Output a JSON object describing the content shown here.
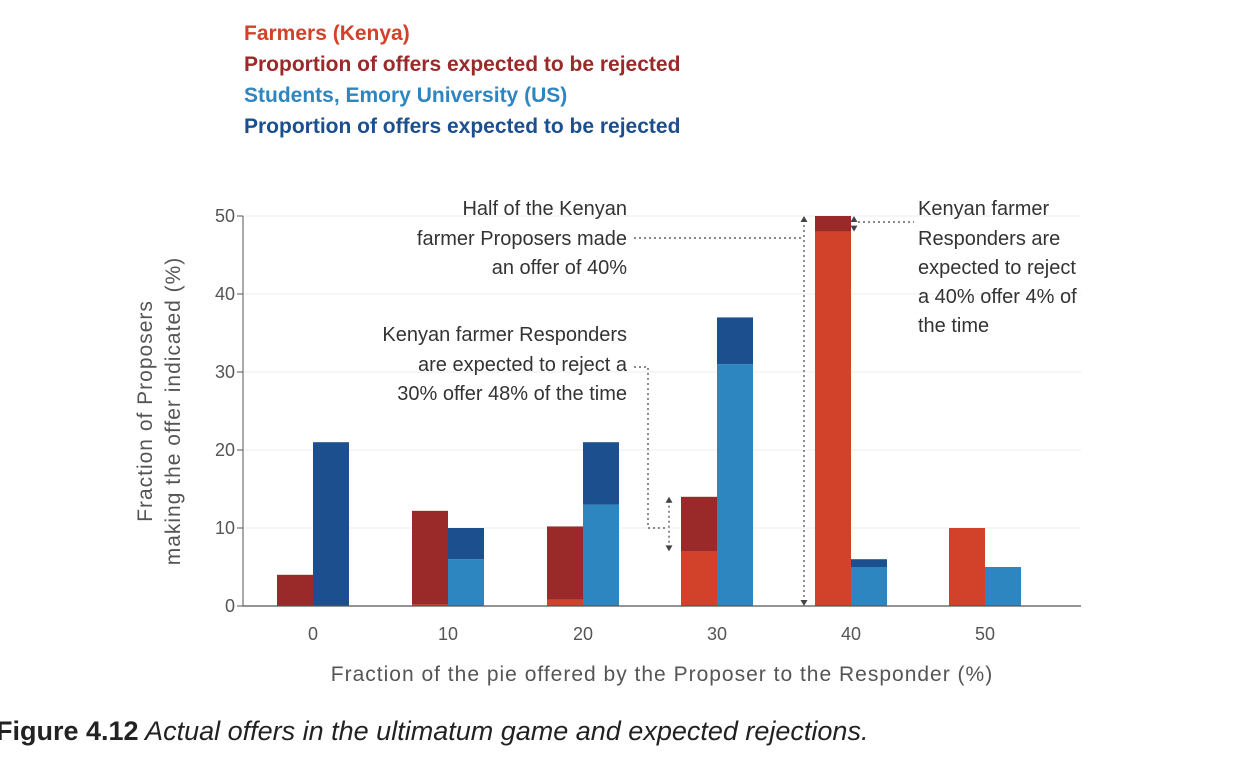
{
  "colors": {
    "farmer_bar": "#d2412a",
    "farmer_reject": "#9a2a2a",
    "student_bar": "#2e86c1",
    "student_reject": "#1b4f8e",
    "axis": "#555555",
    "grid": "#ececec",
    "leader": "#444444"
  },
  "legend": {
    "farmers": "Farmers (Kenya)",
    "farmers_reject": "Proportion of offers expected to be rejected",
    "students": "Students, Emory University (US)",
    "students_reject": "Proportion of offers expected to be rejected"
  },
  "chart_data": {
    "type": "bar",
    "title": "",
    "xlabel": "Fraction of the pie offered by the Proposer to the Responder (%)",
    "ylabel_line1": "Fraction of Proposers",
    "ylabel_line2": "making the offer indicated (%)",
    "ylim": [
      0,
      50
    ],
    "yticks": [
      "0",
      "10",
      "20",
      "30",
      "40",
      "50"
    ],
    "categories": [
      "0",
      "10",
      "20",
      "30",
      "40",
      "50"
    ],
    "series": [
      {
        "name": "Farmers (Kenya)",
        "values": [
          4,
          12.2,
          10.2,
          14,
          50,
          10
        ],
        "rejected": [
          4,
          12,
          9.4,
          7,
          2,
          0
        ]
      },
      {
        "name": "Students, Emory University (US)",
        "values": [
          21,
          10,
          21,
          37,
          6,
          5
        ],
        "rejected": [
          21,
          4,
          8,
          6,
          1,
          0
        ]
      }
    ],
    "annotations": {
      "half": [
        "Half of the Kenyan",
        "farmer Proposers made",
        "an offer of 40%"
      ],
      "reject30": [
        "Kenyan farmer Responders",
        "are expected to reject a",
        "30% offer 48% of the time"
      ],
      "reject40": [
        "Kenyan farmer",
        "Responders are",
        "expected to reject",
        "a 40% offer 4% of",
        "the time"
      ]
    }
  },
  "caption": {
    "number": "Figure 4.12",
    "text": " Actual offers in the ultimatum game and expected rejections."
  }
}
